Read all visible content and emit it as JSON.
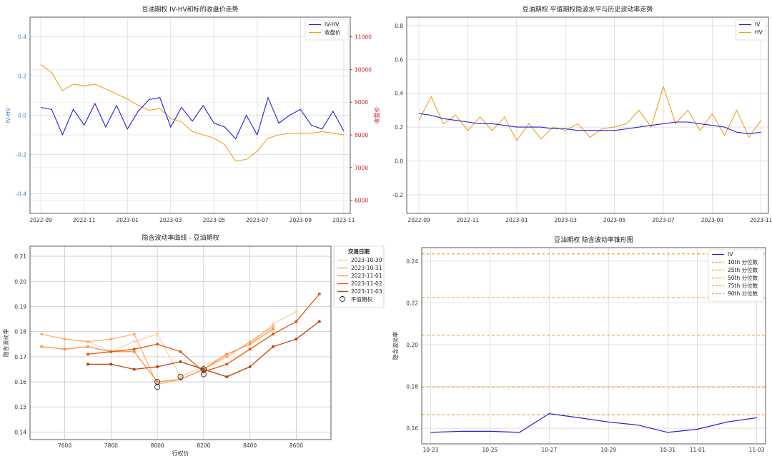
{
  "chart_data": [
    {
      "type": "line",
      "title": "豆油期权 IV-HV和标的收盘价走势",
      "ylabel_left": "IV-HV",
      "ylabel_right": "收盘价",
      "xticks": [
        "2022-09",
        "2022-11",
        "2023-01",
        "2023-03",
        "2023-05",
        "2023-07",
        "2023-09",
        "2023-11"
      ],
      "yticks_left": [
        "0.4",
        "0.2",
        "0.0",
        "-0.2",
        "-0.4"
      ],
      "yticks_right": [
        "11000",
        "10000",
        "9000",
        "8000",
        "7000",
        "6000"
      ],
      "ylim_left": [
        -0.5,
        0.5
      ],
      "ylim_right": [
        5600,
        11600
      ],
      "xlim_months": [
        -0.5,
        14.3
      ],
      "grid": true,
      "legend_position": "top-right",
      "series": [
        {
          "name": "IV-HV",
          "color": "#1f1fdc",
          "axis": "left",
          "x": [
            0,
            0.5,
            1,
            1.5,
            2,
            2.5,
            3,
            3.5,
            4,
            4.5,
            5,
            5.5,
            6,
            6.5,
            7,
            7.5,
            8,
            8.5,
            9,
            9.5,
            10,
            10.5,
            11,
            11.5,
            12,
            12.5,
            13,
            13.5,
            14
          ],
          "values": [
            0.04,
            0.03,
            -0.1,
            0.03,
            -0.05,
            0.06,
            -0.06,
            0.05,
            -0.07,
            0.02,
            0.08,
            0.09,
            -0.06,
            0.04,
            -0.03,
            0.05,
            -0.04,
            -0.06,
            -0.12,
            0.0,
            -0.1,
            0.09,
            -0.04,
            0.0,
            0.03,
            -0.05,
            -0.07,
            0.02,
            -0.08
          ]
        },
        {
          "name": "收盘价",
          "color": "#f0a020",
          "axis": "right",
          "x": [
            0,
            0.5,
            1,
            1.5,
            2,
            2.5,
            3,
            3.5,
            4,
            4.5,
            5,
            5.5,
            6,
            6.5,
            7,
            7.5,
            8,
            8.5,
            9,
            9.5,
            10,
            10.5,
            11,
            11.5,
            12,
            12.5,
            13,
            13.5,
            14
          ],
          "values": [
            10150,
            9900,
            9350,
            9550,
            9500,
            9550,
            9400,
            9250,
            9100,
            8900,
            8750,
            8800,
            8500,
            8400,
            8100,
            8000,
            7900,
            7700,
            7200,
            7250,
            7500,
            7900,
            8000,
            8050,
            8050,
            8050,
            8100,
            8050,
            8000
          ]
        }
      ]
    },
    {
      "type": "line",
      "title": "豆油期权 平值期权隐波水平与历史波动率走势",
      "xticks": [
        "2022-09",
        "2022-11",
        "2023-01",
        "2023-03",
        "2023-05",
        "2023-07",
        "2023-09",
        "2023-11"
      ],
      "yticks": [
        "0.8",
        "0.6",
        "0.4",
        "0.2",
        "0.0",
        "-0.2"
      ],
      "ylim": [
        -0.31,
        0.85
      ],
      "xlim_months": [
        -0.5,
        14.3
      ],
      "grid": true,
      "legend_position": "top-right",
      "series": [
        {
          "name": "IV",
          "color": "#1f1fdc",
          "x": [
            0,
            0.5,
            1,
            1.5,
            2,
            2.5,
            3,
            3.5,
            4,
            4.5,
            5,
            5.5,
            6,
            6.5,
            7,
            7.5,
            8,
            8.5,
            9,
            9.5,
            10,
            10.5,
            11,
            11.5,
            12,
            12.5,
            13,
            13.5,
            14
          ],
          "values": [
            0.28,
            0.27,
            0.25,
            0.24,
            0.23,
            0.22,
            0.22,
            0.21,
            0.2,
            0.2,
            0.2,
            0.19,
            0.19,
            0.18,
            0.18,
            0.18,
            0.18,
            0.19,
            0.2,
            0.21,
            0.22,
            0.23,
            0.23,
            0.22,
            0.21,
            0.2,
            0.17,
            0.16,
            0.17
          ]
        },
        {
          "name": "HV",
          "color": "#f0a020",
          "x": [
            0,
            0.5,
            1,
            1.5,
            2,
            2.5,
            3,
            3.5,
            4,
            4.5,
            5,
            5.5,
            6,
            6.5,
            7,
            7.5,
            8,
            8.5,
            9,
            9.5,
            10,
            10.5,
            11,
            11.5,
            12,
            12.5,
            13,
            13.5,
            14
          ],
          "values": [
            0.24,
            0.38,
            0.22,
            0.27,
            0.18,
            0.26,
            0.18,
            0.26,
            0.12,
            0.22,
            0.13,
            0.2,
            0.18,
            0.22,
            0.14,
            0.19,
            0.2,
            0.22,
            0.3,
            0.2,
            0.44,
            0.22,
            0.3,
            0.18,
            0.28,
            0.15,
            0.3,
            0.14,
            0.24
          ]
        }
      ]
    },
    {
      "type": "line",
      "title": "隐含波动率曲线 - 豆油期权",
      "xlabel": "行权价",
      "ylabel": "隐含波动率",
      "xticks": [
        "7600",
        "7800",
        "8000",
        "8200",
        "8400",
        "8600"
      ],
      "yticks": [
        "0.21",
        "0.20",
        "0.19",
        "0.18",
        "0.17",
        "0.16",
        "0.15",
        "0.14"
      ],
      "xlim": [
        7450,
        8750
      ],
      "ylim": [
        0.137,
        0.214
      ],
      "grid": true,
      "legend_title": "交易日期",
      "legend_position": "right",
      "atm_label": "平值期权",
      "series": [
        {
          "name": "2023-10-30",
          "color": "#fdd0a2",
          "x": [
            7700,
            7800,
            7900,
            8000,
            8100,
            8200,
            8300,
            8400,
            8500,
            8600
          ],
          "values": [
            0.176,
            0.172,
            0.176,
            0.179,
            0.162,
            0.166,
            0.171,
            0.175,
            0.183,
            0.188
          ]
        },
        {
          "name": "2023-10-31",
          "color": "#fdae6b",
          "x": [
            7500,
            7600,
            7700,
            7800,
            7900,
            8000,
            8100,
            8200,
            8300,
            8400,
            8500
          ],
          "values": [
            0.179,
            0.177,
            0.176,
            0.177,
            0.179,
            0.159,
            0.161,
            0.165,
            0.17,
            0.176,
            0.182
          ]
        },
        {
          "name": "2023-11-01",
          "color": "#f7944a",
          "x": [
            7500,
            7600,
            7700,
            7800,
            7900,
            8000,
            8100,
            8200,
            8300,
            8400,
            8500
          ],
          "values": [
            0.174,
            0.173,
            0.174,
            0.172,
            0.172,
            0.16,
            0.161,
            0.165,
            0.171,
            0.175,
            0.181
          ]
        },
        {
          "name": "2023-11-02",
          "color": "#e6550d",
          "x": [
            7700,
            7800,
            7900,
            8000,
            8100,
            8200,
            8300,
            8400,
            8500,
            8600,
            8700
          ],
          "values": [
            0.171,
            0.172,
            0.173,
            0.175,
            0.172,
            0.164,
            0.167,
            0.173,
            0.179,
            0.184,
            0.195
          ]
        },
        {
          "name": "2023-11-03",
          "color": "#b5440f",
          "x": [
            7700,
            7800,
            7900,
            8000,
            8100,
            8200,
            8300,
            8400,
            8500,
            8600,
            8700
          ],
          "values": [
            0.167,
            0.167,
            0.165,
            0.166,
            0.168,
            0.165,
            0.162,
            0.166,
            0.174,
            0.177,
            0.184
          ]
        }
      ],
      "atm_points": [
        {
          "x": 8000,
          "y": 0.16
        },
        {
          "x": 8000,
          "y": 0.158
        },
        {
          "x": 8100,
          "y": 0.162
        },
        {
          "x": 8200,
          "y": 0.163
        },
        {
          "x": 8200,
          "y": 0.165
        }
      ]
    },
    {
      "type": "line",
      "title": "豆油期权 隐含波动率锥形图",
      "ylabel": "隐含波动率",
      "xticks": [
        "10-23",
        "10-25",
        "10-27",
        "10-29",
        "10-31",
        "11-01",
        "11-03"
      ],
      "xtick_positions": [
        0,
        2,
        4,
        6,
        8,
        9,
        11
      ],
      "yticks": [
        "0.24",
        "0.22",
        "0.20",
        "0.18",
        "0.16"
      ],
      "ylim": [
        0.1525,
        0.2465
      ],
      "xlim": [
        -0.3,
        11.3
      ],
      "grid": true,
      "legend_position": "top-right",
      "series": [
        {
          "name": "IV",
          "color": "#1f1fdc",
          "x": [
            0,
            1,
            2,
            3,
            4,
            5,
            6,
            7,
            8,
            9,
            10,
            11
          ],
          "values": [
            0.158,
            0.1585,
            0.1585,
            0.158,
            0.167,
            0.165,
            0.163,
            0.1615,
            0.158,
            0.1595,
            0.163,
            0.165
          ]
        }
      ],
      "percentiles": [
        {
          "name": "10th 分位数",
          "value": 0.1665
        },
        {
          "name": "25th 分位数",
          "value": 0.1795
        },
        {
          "name": "50th 分位数",
          "value": 0.2045
        },
        {
          "name": "75th 分位数",
          "value": 0.2225
        },
        {
          "name": "90th 分位数",
          "value": 0.2435
        }
      ],
      "percentile_color": "#f0a020"
    }
  ]
}
